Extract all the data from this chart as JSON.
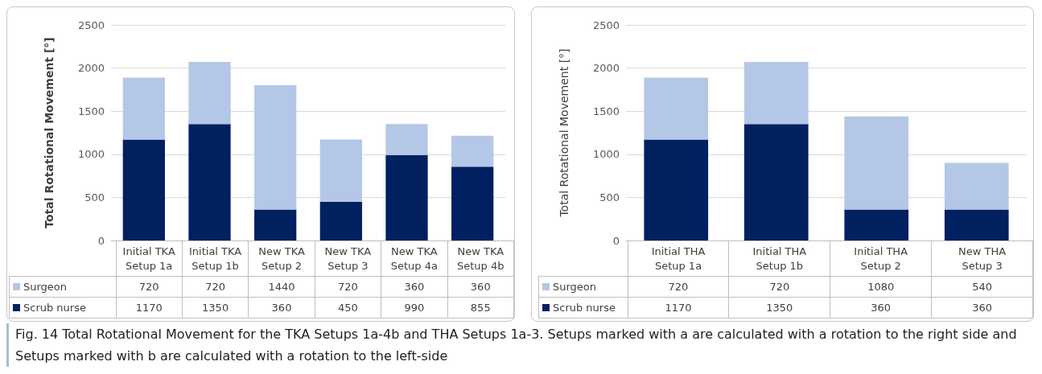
{
  "chart_data": [
    {
      "type": "bar",
      "stacked": true,
      "ylabel": "Total Rotational Movement [°]",
      "categories": [
        "Initial TKA Setup 1a",
        "Initial TKA Setup 1b",
        "New TKA Setup 2",
        "New TKA Setup 3",
        "New TKA Setup 4a",
        "New TKA Setup 4b"
      ],
      "series": [
        {
          "name": "Scrub nurse",
          "color": "#002060",
          "values": [
            1170,
            1350,
            360,
            450,
            990,
            855
          ]
        },
        {
          "name": "Surgeon",
          "color": "#b4c7e7",
          "values": [
            720,
            720,
            1440,
            720,
            360,
            360
          ]
        }
      ],
      "ylim": [
        0,
        2500
      ],
      "yticks": [
        0,
        500,
        1000,
        1500,
        2000,
        2500
      ],
      "grid": "y",
      "legend": "bottom",
      "data_labels": true
    },
    {
      "type": "bar",
      "stacked": true,
      "ylabel": "Total Rotational Movement [°]",
      "categories": [
        "Initial THA Setup 1a",
        "Initial THA Setup 1b",
        "Initial THA Setup 2",
        "New THA Setup 3"
      ],
      "series": [
        {
          "name": "Scrub nurse",
          "color": "#002060",
          "values": [
            1170,
            1350,
            360,
            360
          ]
        },
        {
          "name": "Surgeon",
          "color": "#b4c7e7",
          "values": [
            720,
            720,
            1080,
            540
          ]
        }
      ],
      "ylim": [
        0,
        2500
      ],
      "yticks": [
        0,
        500,
        1000,
        1500,
        2000,
        2500
      ],
      "grid": "y",
      "legend": "bottom",
      "data_labels": true,
      "annotations": [
        "Fig. 14 Total Rotational Movement for the TKA Setups 1a-4b and THA Setups 1a-3. Setups marked with a are calculated with a rotation to the right side and Setups marked with b are calculated with a rotation to the left-side"
      ]
    }
  ]
}
